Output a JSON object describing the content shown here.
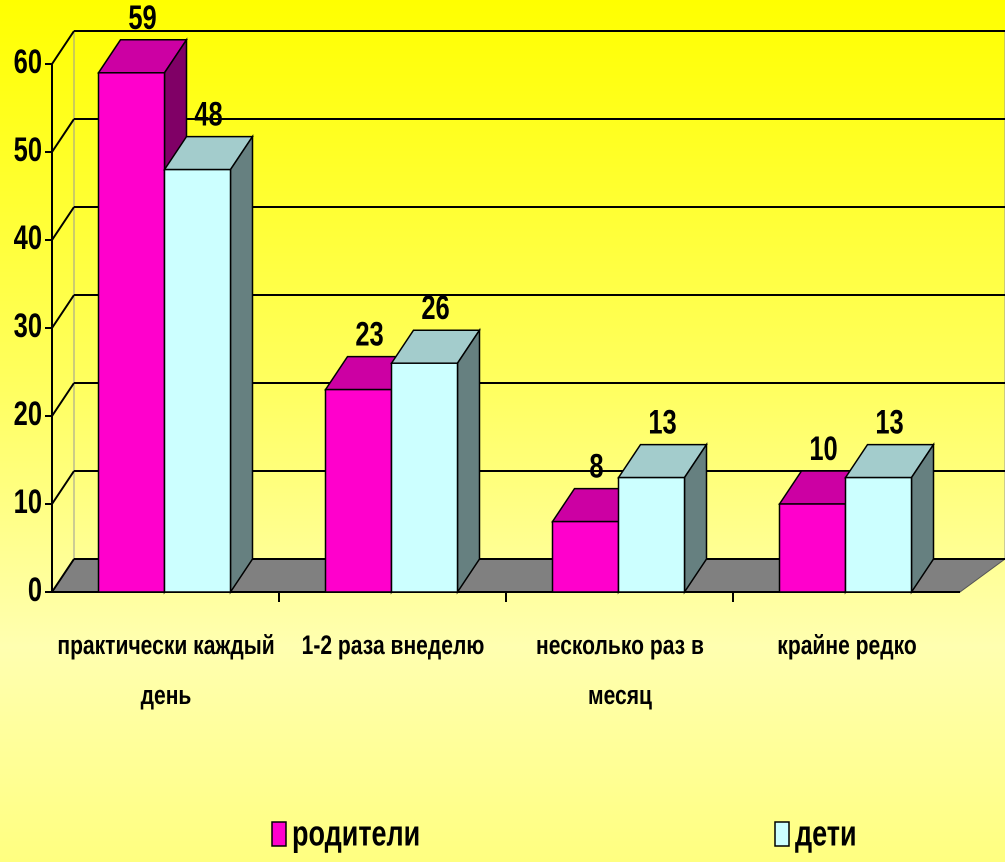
{
  "chart_data": {
    "type": "bar3d",
    "categories": [
      "практически каждый день",
      "1-2 раза внеделю",
      "несколько раз в месяц",
      "крайне редко"
    ],
    "series": [
      {
        "name": "родители",
        "color": "#ff00cc",
        "values": [
          59,
          23,
          8,
          10
        ]
      },
      {
        "name": "дети",
        "color": "#ccffff",
        "values": [
          48,
          26,
          13,
          13
        ]
      }
    ],
    "ylim": [
      0,
      60
    ],
    "yticks": [
      0,
      10,
      20,
      30,
      40,
      50,
      60
    ],
    "grid": true,
    "legend": "bottom"
  }
}
